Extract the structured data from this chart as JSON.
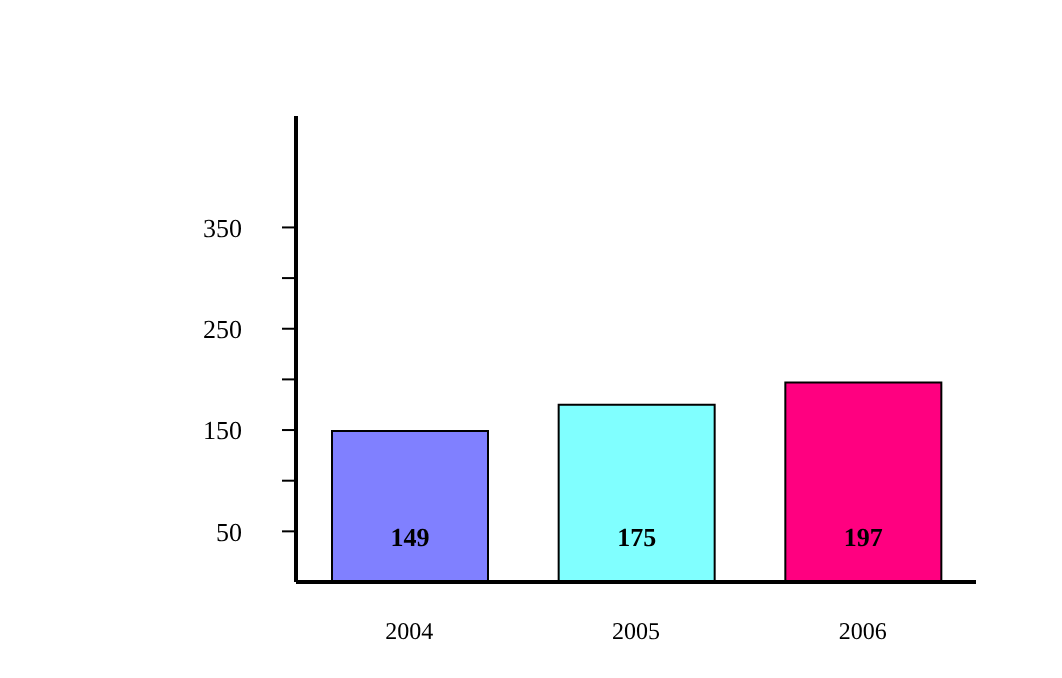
{
  "chart_data": {
    "type": "bar",
    "categories": [
      "2004",
      "2005",
      "2006"
    ],
    "values": [
      149,
      175,
      197
    ],
    "colors": [
      "#8080ff",
      "#80ffff",
      "#ff0080"
    ],
    "ylim": [
      0,
      460
    ],
    "yticks": [
      50,
      {
        "value": 100,
        "label": null
      },
      150,
      {
        "value": 200,
        "label": null
      },
      250,
      {
        "value": 300,
        "label": null
      },
      350
    ],
    "data_labels": true
  }
}
